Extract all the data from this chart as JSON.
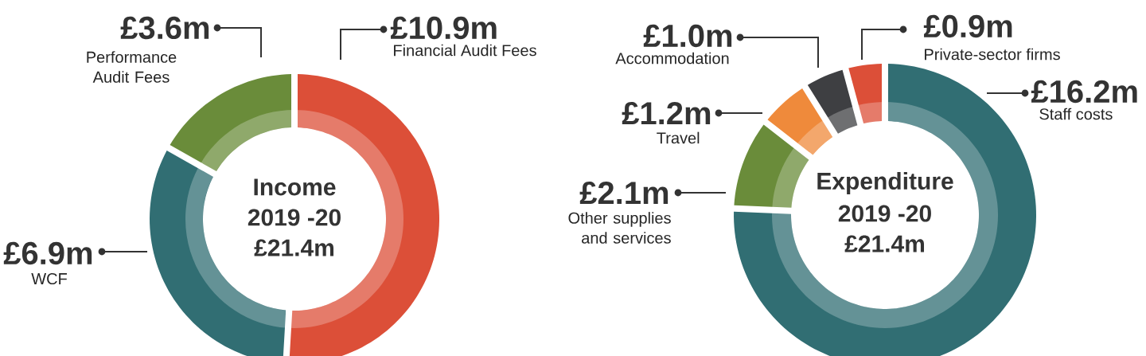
{
  "chart_data": [
    {
      "type": "donut",
      "title": "Income",
      "subtitle": "2019 -20",
      "annotations": [
        "£21.4m"
      ],
      "categories": [
        "Financial Audit Fees",
        "WCF",
        "Performance Audit Fees"
      ],
      "values": [
        10.9,
        6.9,
        3.6
      ],
      "value_labels": [
        "£10.9m",
        "£6.9m",
        "£3.6m"
      ],
      "colors": [
        "#dc4f38",
        "#316e73",
        "#6a8c3a"
      ]
    },
    {
      "type": "donut",
      "title": "Expenditure",
      "subtitle": "2019 -20",
      "annotations": [
        "£21.4m"
      ],
      "categories": [
        "Staff costs",
        "Other supplies and services",
        "Travel",
        "Accommodation",
        "Private-sector firms"
      ],
      "values": [
        16.2,
        2.1,
        1.2,
        1.0,
        0.9
      ],
      "value_labels": [
        "£16.2m",
        "£2.1m",
        "£1.2m",
        "£1.0m",
        "£0.9m"
      ],
      "colors": [
        "#316e73",
        "#6a8c3a",
        "#ef8a3b",
        "#3e3f42",
        "#dc4f38"
      ]
    }
  ]
}
